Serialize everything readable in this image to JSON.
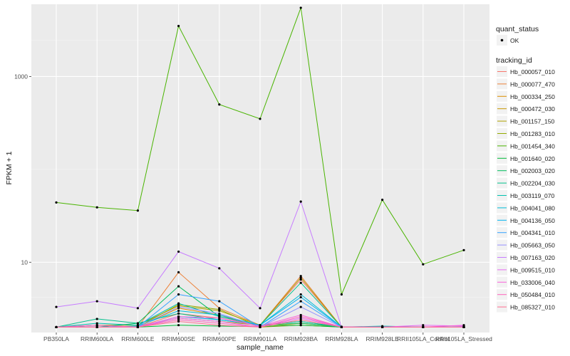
{
  "chart_data": {
    "type": "line",
    "xlabel": "sample_name",
    "ylabel": "FPKM + 1",
    "y_scale": "log10",
    "ylim": [
      1.75,
      6000
    ],
    "y_ticks": [
      {
        "value": 10,
        "label": "10"
      },
      {
        "value": 1000,
        "label": "1000"
      }
    ],
    "grid": true,
    "legend_placement": "right",
    "categories": [
      "PB350LA",
      "RRIM600LA",
      "RRIM600LE",
      "RRIM600SE",
      "RRIM600PE",
      "RRIM901LA",
      "RRIM928BA",
      "RRIM928LA",
      "RRIM928LE",
      "RRII105LA_Control",
      "RRII105LA_Stressed"
    ],
    "legend_quant": {
      "title": "quant_status",
      "entries": [
        "OK"
      ]
    },
    "legend_tracking_title": "tracking_id",
    "series": [
      {
        "name": "Hb_000057_010",
        "color": "#F8766D",
        "values": [
          2,
          2,
          2,
          2.8,
          2.5,
          2.1,
          6.5,
          2,
          2,
          2,
          2
        ]
      },
      {
        "name": "Hb_000077_470",
        "color": "#EC8239",
        "values": [
          2,
          2,
          2,
          7.8,
          3.2,
          2.1,
          7.1,
          2,
          2,
          2,
          2
        ]
      },
      {
        "name": "Hb_000334_250",
        "color": "#DB8E00",
        "values": [
          2,
          2,
          2,
          3.2,
          2.7,
          2,
          2.1,
          2,
          2,
          2,
          2
        ]
      },
      {
        "name": "Hb_000472_030",
        "color": "#C79800",
        "values": [
          2,
          2,
          2,
          2.5,
          2.3,
          2.1,
          2.3,
          2,
          2,
          2,
          2
        ]
      },
      {
        "name": "Hb_001157_150",
        "color": "#AFA100",
        "values": [
          2,
          2.1,
          2.1,
          3.4,
          3,
          2.1,
          6.8,
          2,
          2,
          2,
          2
        ]
      },
      {
        "name": "Hb_001283_010",
        "color": "#93AA00",
        "values": [
          2,
          2,
          2,
          3.5,
          3.1,
          2,
          2.2,
          2,
          2,
          2,
          2
        ]
      },
      {
        "name": "Hb_001454_340",
        "color": "#49B400",
        "values": [
          44,
          39,
          36,
          3500,
          500,
          350,
          5500,
          4.5,
          47,
          9.5,
          13.5
        ]
      },
      {
        "name": "Hb_001640_020",
        "color": "#00BA38",
        "values": [
          2,
          2,
          2,
          2.1,
          2.05,
          2.03,
          2.1,
          2,
          2.01,
          2,
          2
        ]
      },
      {
        "name": "Hb_002003_020",
        "color": "#00BD5C",
        "values": [
          2,
          2,
          2.2,
          5.5,
          2.6,
          2.1,
          2.2,
          2.02,
          2,
          2,
          2
        ]
      },
      {
        "name": "Hb_002204_030",
        "color": "#00C08B",
        "values": [
          2,
          2.45,
          2.2,
          2.8,
          2.4,
          2.1,
          6,
          2,
          2,
          2,
          2
        ]
      },
      {
        "name": "Hb_003119_070",
        "color": "#00C0AF",
        "values": [
          2,
          2.2,
          2.1,
          3.6,
          2.6,
          2.1,
          2.3,
          2,
          2.05,
          2,
          2
        ]
      },
      {
        "name": "Hb_004041_080",
        "color": "#00BCD8",
        "values": [
          2,
          2,
          2.05,
          3,
          2.7,
          2.1,
          4.5,
          2,
          2,
          2,
          2
        ]
      },
      {
        "name": "Hb_004136_050",
        "color": "#00B4F0",
        "values": [
          2,
          2.1,
          2,
          2.6,
          2.4,
          2.1,
          4.2,
          2,
          2,
          2,
          2
        ]
      },
      {
        "name": "Hb_004341_010",
        "color": "#35A2FF",
        "values": [
          2,
          2,
          2,
          4.5,
          3.8,
          2,
          3.8,
          2,
          2,
          2,
          2
        ]
      },
      {
        "name": "Hb_005663_050",
        "color": "#9590FF",
        "values": [
          2,
          2,
          2,
          3.3,
          2.8,
          2,
          3.3,
          2,
          2,
          2,
          2
        ]
      },
      {
        "name": "Hb_007163_020",
        "color": "#C77CFF",
        "values": [
          3.3,
          3.8,
          3.2,
          13,
          8.6,
          3.2,
          45,
          2,
          2,
          2,
          2
        ]
      },
      {
        "name": "Hb_009515_010",
        "color": "#E76BF3",
        "values": [
          2,
          2,
          2,
          2.5,
          2.3,
          2,
          2.5,
          2,
          2,
          2.1,
          2.05
        ]
      },
      {
        "name": "Hb_033006_040",
        "color": "#FA62DB",
        "values": [
          2,
          2,
          2,
          2.6,
          2.5,
          2.05,
          2.7,
          2,
          2,
          2,
          2.1
        ]
      },
      {
        "name": "Hb_050484_010",
        "color": "#FF62BC",
        "values": [
          2,
          2.1,
          2,
          2.4,
          2.2,
          2,
          2.6,
          2,
          2,
          2,
          2
        ]
      },
      {
        "name": "Hb_085327_010",
        "color": "#FF6C90",
        "values": [
          2,
          2,
          2,
          2.3,
          2.1,
          2,
          2.4,
          2,
          2,
          2,
          2
        ]
      }
    ],
    "colors": {
      "panel": "#EBEBEB",
      "grid": "#FFFFFF",
      "point": "#000000"
    }
  }
}
